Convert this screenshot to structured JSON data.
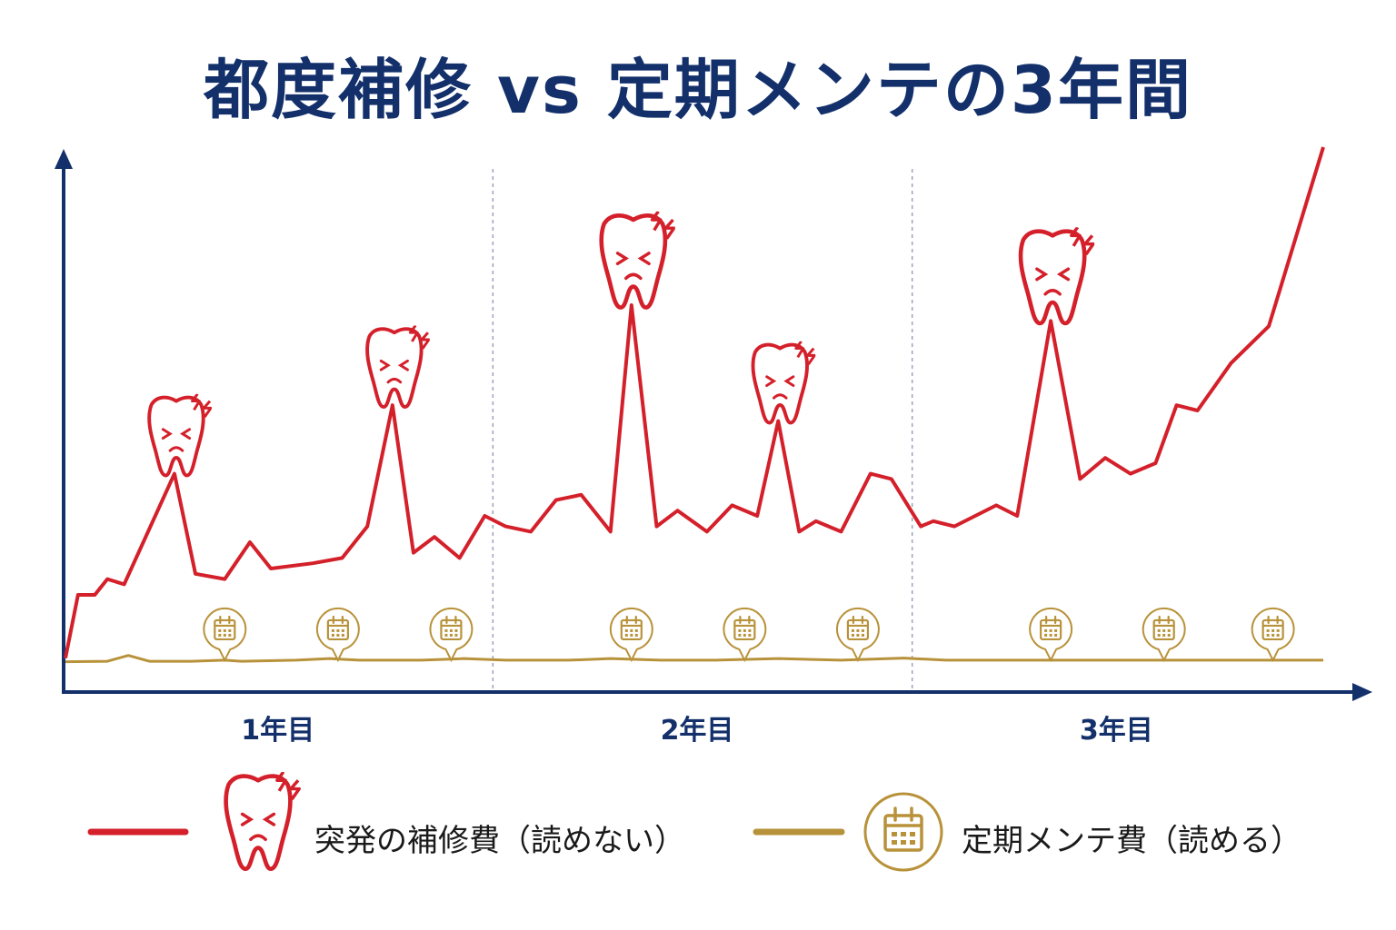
{
  "title": "都度補修 vs 定期メンテの3年間",
  "colors": {
    "navy": "#13306b",
    "repair": "#d4202a",
    "maintenance": "#b8923a",
    "divider": "#9aa3bd"
  },
  "chart_data": {
    "type": "line",
    "title": "都度補修 vs 定期メンテの3年間",
    "xlabel": "",
    "ylabel": "",
    "x_categories": [
      "1年目",
      "2年目",
      "3年目"
    ],
    "x_range": [
      0,
      3
    ],
    "y_range": [
      0,
      100
    ],
    "grid": false,
    "legend_position": "bottom",
    "series": [
      {
        "name": "突発の補修費（読めない）",
        "color": "#d4202a",
        "marker_icon": "sad-tooth-icon",
        "points": [
          [
            0.0,
            3
          ],
          [
            0.03,
            15
          ],
          [
            0.07,
            15
          ],
          [
            0.1,
            18
          ],
          [
            0.14,
            17
          ],
          [
            0.26,
            38
          ],
          [
            0.31,
            19
          ],
          [
            0.38,
            18
          ],
          [
            0.44,
            25
          ],
          [
            0.49,
            20
          ],
          [
            0.59,
            21
          ],
          [
            0.66,
            22
          ],
          [
            0.72,
            28
          ],
          [
            0.78,
            51
          ],
          [
            0.83,
            23
          ],
          [
            0.88,
            26
          ],
          [
            0.94,
            22
          ],
          [
            1.0,
            30
          ],
          [
            1.05,
            28
          ],
          [
            1.11,
            27
          ],
          [
            1.17,
            33
          ],
          [
            1.23,
            34
          ],
          [
            1.3,
            27
          ],
          [
            1.35,
            70
          ],
          [
            1.41,
            28
          ],
          [
            1.46,
            31
          ],
          [
            1.53,
            27
          ],
          [
            1.59,
            32
          ],
          [
            1.65,
            30
          ],
          [
            1.7,
            48
          ],
          [
            1.75,
            27
          ],
          [
            1.79,
            29
          ],
          [
            1.85,
            27
          ],
          [
            1.92,
            38
          ],
          [
            1.97,
            37
          ],
          [
            2.04,
            28
          ],
          [
            2.07,
            29
          ],
          [
            2.12,
            28
          ],
          [
            2.22,
            32
          ],
          [
            2.27,
            30
          ],
          [
            2.35,
            67
          ],
          [
            2.42,
            37
          ],
          [
            2.48,
            41
          ],
          [
            2.54,
            38
          ],
          [
            2.6,
            40
          ],
          [
            2.65,
            51
          ],
          [
            2.7,
            50
          ],
          [
            2.78,
            59
          ],
          [
            2.87,
            66
          ],
          [
            3.0,
            100
          ]
        ],
        "spikes": [
          {
            "x": 0.26,
            "y": 38
          },
          {
            "x": 0.78,
            "y": 51
          },
          {
            "x": 1.35,
            "y": 70
          },
          {
            "x": 1.7,
            "y": 48
          },
          {
            "x": 2.35,
            "y": 67
          }
        ]
      },
      {
        "name": "定期メンテ費（読める）",
        "color": "#b8923a",
        "marker_icon": "calendar-icon",
        "points": [
          [
            0.0,
            2.3
          ],
          [
            0.1,
            2.4
          ],
          [
            0.15,
            3.5
          ],
          [
            0.2,
            2.4
          ],
          [
            0.3,
            2.4
          ],
          [
            0.38,
            2.6
          ],
          [
            0.42,
            2.4
          ],
          [
            0.55,
            2.6
          ],
          [
            0.63,
            2.9
          ],
          [
            0.7,
            2.6
          ],
          [
            0.85,
            2.6
          ],
          [
            0.95,
            2.9
          ],
          [
            1.05,
            2.6
          ],
          [
            1.2,
            2.6
          ],
          [
            1.3,
            2.9
          ],
          [
            1.42,
            2.6
          ],
          [
            1.55,
            2.6
          ],
          [
            1.7,
            2.9
          ],
          [
            1.85,
            2.6
          ],
          [
            2.0,
            3.0
          ],
          [
            2.1,
            2.6
          ],
          [
            2.25,
            2.6
          ],
          [
            2.4,
            2.6
          ],
          [
            2.55,
            2.6
          ],
          [
            2.7,
            2.6
          ],
          [
            2.85,
            2.6
          ],
          [
            3.0,
            2.6
          ]
        ],
        "markers": [
          0.38,
          0.65,
          0.92,
          1.35,
          1.62,
          1.89,
          2.35,
          2.62,
          2.88
        ]
      }
    ]
  },
  "legend": {
    "repair_label": "突発の補修費（読めない）",
    "maintenance_label": "定期メンテ費（読める）"
  }
}
